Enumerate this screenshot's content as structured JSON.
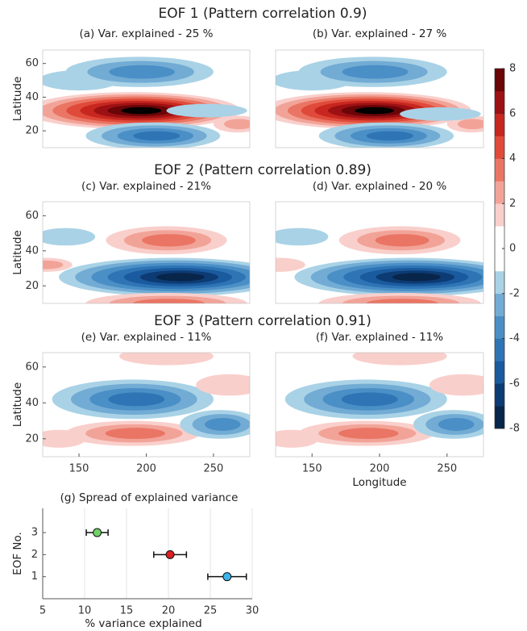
{
  "chart_data": [
    {
      "type": "contour",
      "suptitle": "EOF 1 (Pattern correlation 0.9)",
      "title": "(a) Var. explained - 25 %",
      "ylabel": "Latitude",
      "xlim": [
        123,
        277
      ],
      "ylim": [
        10,
        68
      ],
      "yticks": [
        20,
        40,
        60
      ]
    },
    {
      "type": "contour",
      "title": "(b) Var. explained - 27 %",
      "xlim": [
        123,
        277
      ],
      "ylim": [
        10,
        68
      ]
    },
    {
      "type": "contour",
      "suptitle": "EOF 2 (Pattern correlation 0.89)",
      "title": "(c) Var. explained - 21%",
      "ylabel": "Latitude",
      "xlim": [
        123,
        277
      ],
      "ylim": [
        10,
        68
      ],
      "yticks": [
        20,
        40,
        60
      ]
    },
    {
      "type": "contour",
      "title": "(d) Var. explained - 20 %",
      "xlim": [
        123,
        277
      ],
      "ylim": [
        10,
        68
      ]
    },
    {
      "type": "contour",
      "suptitle": "EOF 3 (Pattern correlation 0.91)",
      "title": "(e) Var. explained - 11%",
      "ylabel": "Latitude",
      "xlim": [
        123,
        277
      ],
      "ylim": [
        10,
        68
      ],
      "yticks": [
        20,
        40,
        60
      ],
      "xticks": [
        150,
        200,
        250
      ]
    },
    {
      "type": "contour",
      "title": "(f) Var. explained - 11%",
      "xlabel": "Longitude",
      "xlim": [
        123,
        277
      ],
      "ylim": [
        10,
        68
      ],
      "xticks": [
        150,
        200,
        250
      ]
    },
    {
      "type": "colorbar",
      "ylim": [
        -8,
        8
      ],
      "yticks": [
        -8,
        -6,
        -4,
        -2,
        0,
        2,
        4,
        6,
        8
      ],
      "colors": [
        "#08254a",
        "#0d3b73",
        "#1a5a9e",
        "#2f75b5",
        "#4a8fc6",
        "#72abd4",
        "#a9d2e6",
        "#ffffff",
        "#ffffff",
        "#f9cfcb",
        "#f2a398",
        "#ea7564",
        "#e04a3a",
        "#c7271f",
        "#9c1114",
        "#6a0508"
      ]
    },
    {
      "type": "errorbar",
      "title": "(g) Spread of explained variance",
      "xlabel": "% variance explained",
      "ylabel": "EOF No.",
      "y": [
        1,
        2,
        3
      ],
      "values": [
        27,
        20.2,
        11.5
      ],
      "errors": [
        2.3,
        1.95,
        1.3
      ],
      "colors": [
        "#3cb4ea",
        "#dd1f1f",
        "#6fd266"
      ],
      "xlim": [
        5,
        30
      ],
      "xticks": [
        5,
        10,
        15,
        20,
        25,
        30
      ],
      "ylim": [
        0,
        4.1
      ],
      "yticks": [
        1,
        2,
        3
      ],
      "grid": true
    }
  ]
}
